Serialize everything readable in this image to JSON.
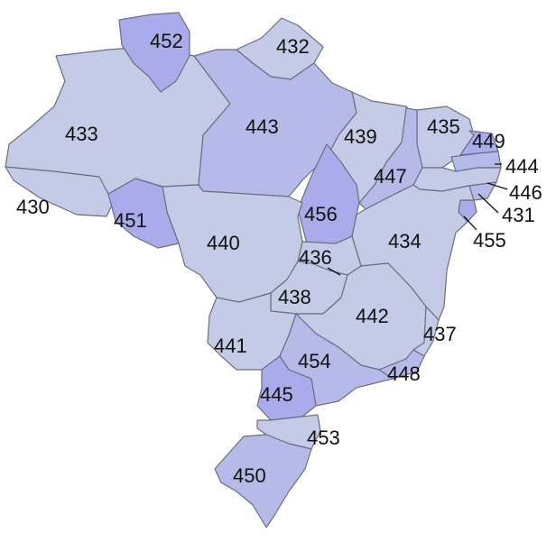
{
  "map": {
    "regions": [
      {
        "code": "430"
      },
      {
        "code": "431"
      },
      {
        "code": "432"
      },
      {
        "code": "433"
      },
      {
        "code": "434"
      },
      {
        "code": "435"
      },
      {
        "code": "436"
      },
      {
        "code": "437"
      },
      {
        "code": "438"
      },
      {
        "code": "439"
      },
      {
        "code": "440"
      },
      {
        "code": "441"
      },
      {
        "code": "442"
      },
      {
        "code": "443"
      },
      {
        "code": "444"
      },
      {
        "code": "445"
      },
      {
        "code": "446"
      },
      {
        "code": "447"
      },
      {
        "code": "448"
      },
      {
        "code": "449"
      },
      {
        "code": "450"
      },
      {
        "code": "451"
      },
      {
        "code": "452"
      },
      {
        "code": "453"
      },
      {
        "code": "454"
      },
      {
        "code": "455"
      },
      {
        "code": "456"
      }
    ],
    "colors": {
      "light": "#c3cbe6",
      "mid": "#b6bae8",
      "dark": "#a9abeb",
      "border": "#6a6f80"
    }
  }
}
